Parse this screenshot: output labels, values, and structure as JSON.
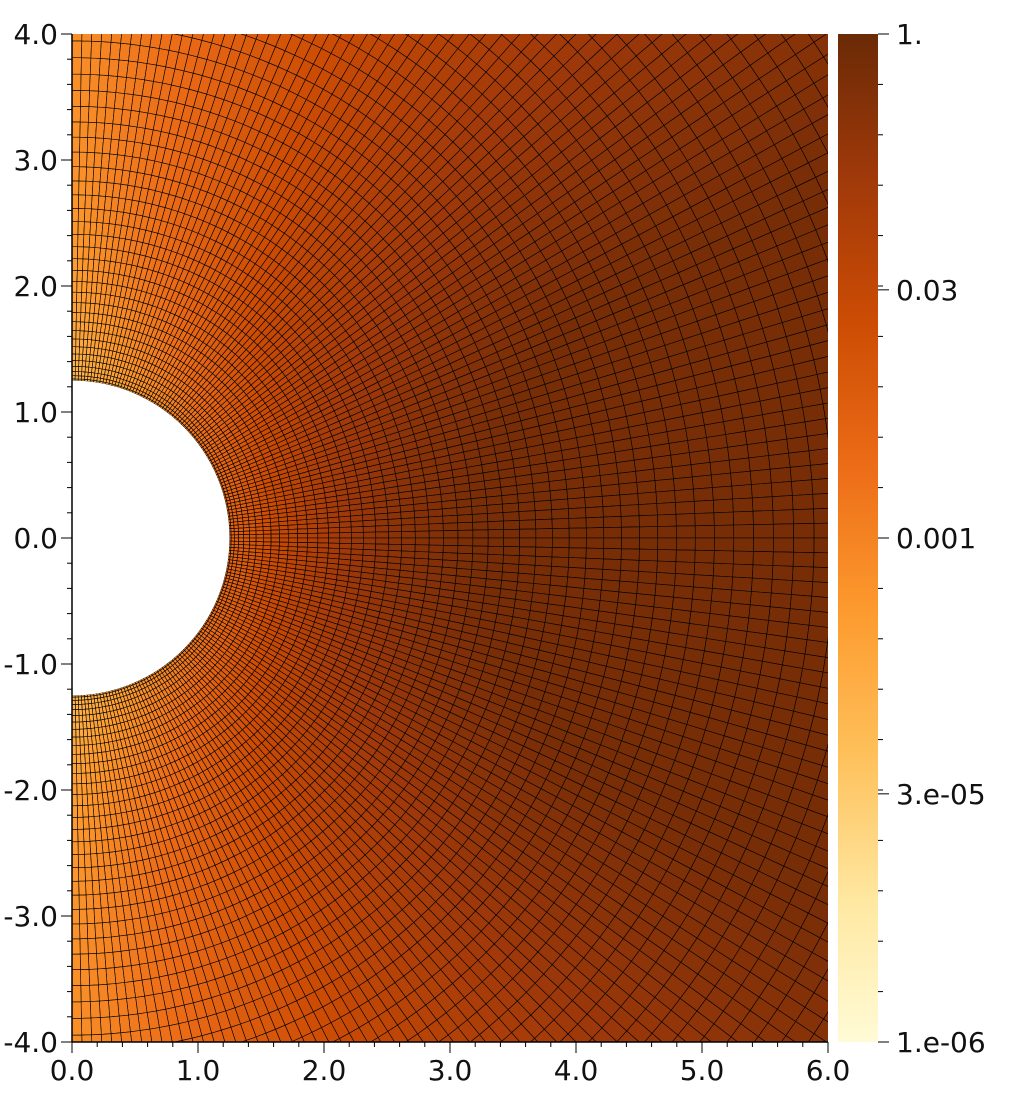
{
  "chart_data": {
    "type": "heatmap",
    "description_free": true,
    "x_ticks": [
      "0.0",
      "1.0",
      "2.0",
      "3.0",
      "4.0",
      "5.0",
      "6.0"
    ],
    "y_ticks": [
      "4.0",
      "3.0",
      "2.0",
      "1.0",
      "0.0",
      "-1.0",
      "-2.0",
      "-3.0",
      "-4.0"
    ],
    "xlim": [
      0,
      6
    ],
    "ylim": [
      -4,
      4
    ],
    "hole_radius": 1.25,
    "grid": true,
    "colorbar": {
      "scale": "log",
      "range": [
        1e-06,
        1
      ],
      "tick_values": [
        1,
        0.03,
        0.001,
        3e-05,
        1e-06
      ],
      "tick_labels": [
        "1.",
        "0.03",
        "0.001",
        "3.e-05",
        "1.e-06"
      ],
      "colors": [
        "#fffbd6",
        "#ffe7a0",
        "#fec05a",
        "#fd9a2e",
        "#ec6c17",
        "#cc4c04",
        "#a0390a",
        "#6a2a06"
      ]
    }
  }
}
